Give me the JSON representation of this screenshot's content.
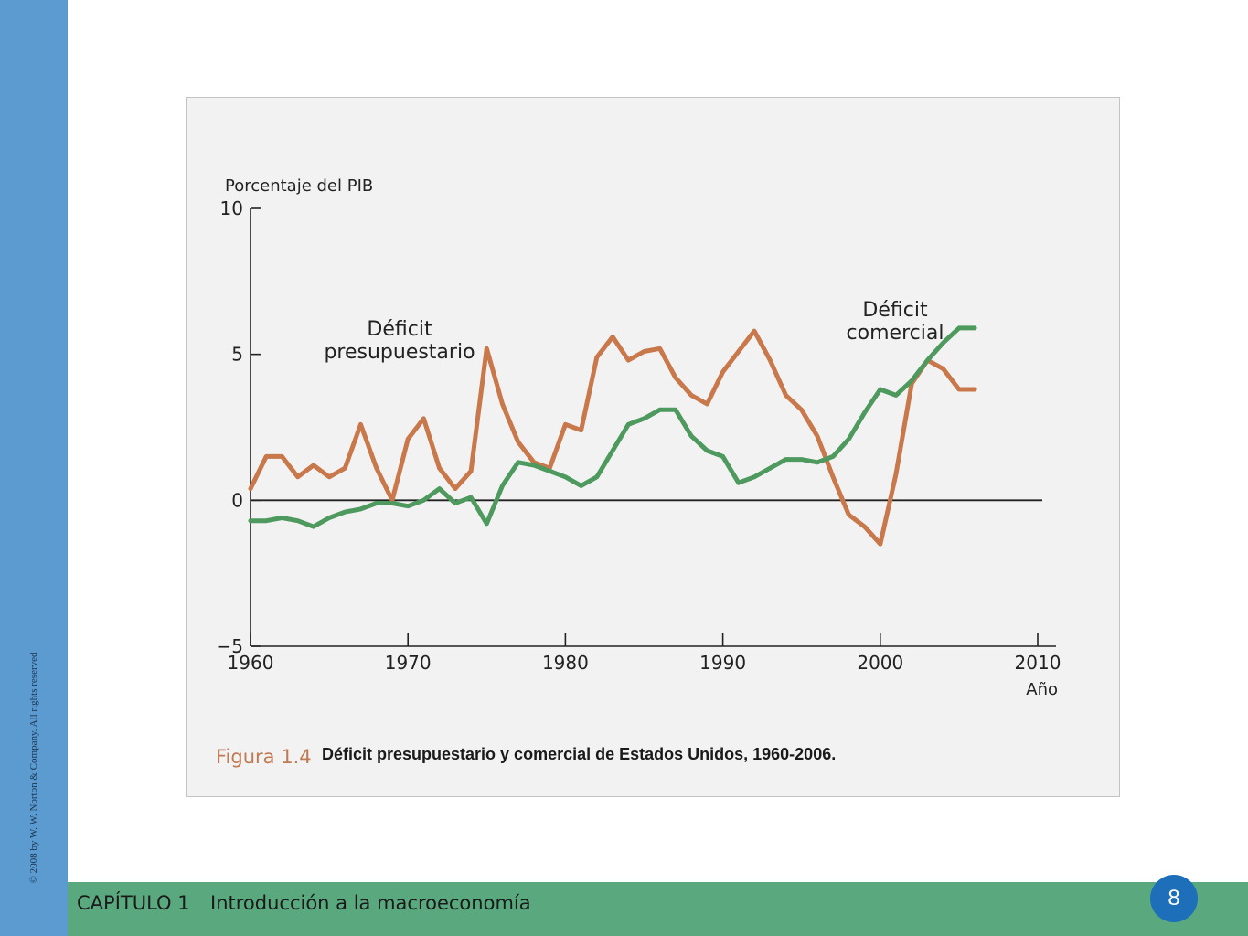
{
  "copyright": "© 2008 by W. W. Norton & Company. All rights reserved",
  "footer": {
    "chapter": "CAPÍTULO 1",
    "title": "Introducción a la macroeconomía",
    "page_number": "8"
  },
  "figure": {
    "label": "Figura 1.4",
    "caption": "Déficit presupuestario y comercial de Estados Unidos, 1960-2006."
  },
  "colors": {
    "budget_series": "#c8784a",
    "trade_series": "#4e9a5e",
    "left_band": "#5b9bd0",
    "footer_band": "#5aa97e",
    "page_badge": "#1c6fb8"
  },
  "chart_data": {
    "type": "line",
    "ylabel": "Porcentaje del PIB",
    "xlabel": "Año",
    "xlim": [
      1960,
      2010
    ],
    "ylim": [
      -5,
      10
    ],
    "xticks": [
      "1960",
      "1970",
      "1980",
      "1990",
      "2000",
      "2010"
    ],
    "yticks": [
      "10",
      "5",
      "0",
      "−5"
    ],
    "zero_line": true,
    "grid": false,
    "series": [
      {
        "name": "Déficit presupuestario",
        "annotation_lines": [
          "Déficit",
          "presupuestario"
        ],
        "color": "#c8784a",
        "x": [
          1960,
          1961,
          1962,
          1963,
          1964,
          1965,
          1966,
          1967,
          1968,
          1969,
          1970,
          1971,
          1972,
          1973,
          1974,
          1975,
          1976,
          1977,
          1978,
          1979,
          1980,
          1981,
          1982,
          1983,
          1984,
          1985,
          1986,
          1987,
          1988,
          1989,
          1990,
          1991,
          1992,
          1993,
          1994,
          1995,
          1996,
          1997,
          1998,
          1999,
          2000,
          2001,
          2002,
          2003,
          2004,
          2005,
          2006
        ],
        "values": [
          0.4,
          1.5,
          1.5,
          0.8,
          1.2,
          0.8,
          1.1,
          2.6,
          1.1,
          0.0,
          2.1,
          2.8,
          1.1,
          0.4,
          1.0,
          5.2,
          3.3,
          2.0,
          1.3,
          1.1,
          2.6,
          2.4,
          4.9,
          5.6,
          4.8,
          5.1,
          5.2,
          4.2,
          3.6,
          3.3,
          4.4,
          5.1,
          5.8,
          4.8,
          3.6,
          3.1,
          2.2,
          0.8,
          -0.5,
          -0.9,
          -1.5,
          0.9,
          4.0,
          4.8,
          4.5,
          3.8,
          3.8
        ]
      },
      {
        "name": "Déficit comercial",
        "annotation_lines": [
          "Déficit",
          "comercial"
        ],
        "color": "#4e9a5e",
        "x": [
          1960,
          1961,
          1962,
          1963,
          1964,
          1965,
          1966,
          1967,
          1968,
          1969,
          1970,
          1971,
          1972,
          1973,
          1974,
          1975,
          1976,
          1977,
          1978,
          1979,
          1980,
          1981,
          1982,
          1983,
          1984,
          1985,
          1986,
          1987,
          1988,
          1989,
          1990,
          1991,
          1992,
          1993,
          1994,
          1995,
          1996,
          1997,
          1998,
          1999,
          2000,
          2001,
          2002,
          2003,
          2004,
          2005,
          2006
        ],
        "values": [
          -0.7,
          -0.7,
          -0.6,
          -0.7,
          -0.9,
          -0.6,
          -0.4,
          -0.3,
          -0.1,
          -0.1,
          -0.2,
          0.0,
          0.4,
          -0.1,
          0.1,
          -0.8,
          0.5,
          1.3,
          1.2,
          1.0,
          0.8,
          0.5,
          0.8,
          1.7,
          2.6,
          2.8,
          3.1,
          3.1,
          2.2,
          1.7,
          1.5,
          0.6,
          0.8,
          1.1,
          1.4,
          1.4,
          1.3,
          1.5,
          2.1,
          3.0,
          3.8,
          3.6,
          4.1,
          4.8,
          5.4,
          5.9,
          5.9
        ]
      }
    ]
  }
}
